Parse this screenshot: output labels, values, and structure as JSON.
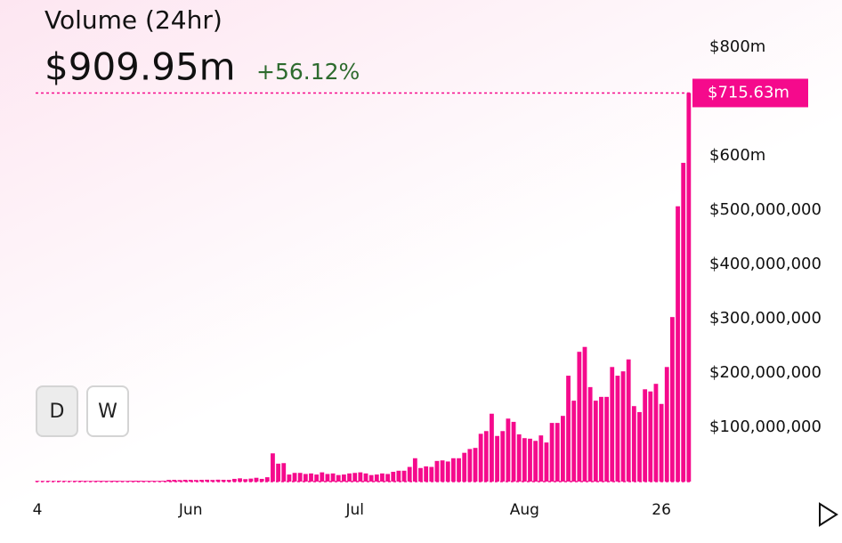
{
  "header": {
    "title": "Volume (24hr)",
    "value": "$909.95m",
    "change": "+56.12%"
  },
  "buttons": [
    "D",
    "W"
  ],
  "chart_data": {
    "type": "bar",
    "color": "#f50a8c",
    "last_value_label": "$715.63m",
    "categories": [
      "4",
      null,
      null,
      null,
      null,
      null,
      null,
      null,
      null,
      null,
      null,
      null,
      null,
      null,
      null,
      null,
      null,
      null,
      null,
      null,
      null,
      null,
      null,
      null,
      null,
      null,
      null,
      null,
      "Jun",
      null,
      null,
      null,
      null,
      null,
      null,
      null,
      null,
      null,
      null,
      null,
      null,
      null,
      null,
      null,
      null,
      null,
      null,
      null,
      null,
      null,
      null,
      null,
      null,
      null,
      null,
      null,
      null,
      null,
      "Jul",
      null,
      null,
      null,
      null,
      null,
      null,
      null,
      null,
      null,
      null,
      null,
      null,
      null,
      null,
      null,
      null,
      null,
      null,
      null,
      null,
      null,
      null,
      null,
      null,
      null,
      null,
      null,
      null,
      null,
      null,
      "Aug",
      null,
      null,
      null,
      null,
      null,
      null,
      null,
      null,
      null,
      null,
      null,
      null,
      null,
      null,
      null,
      null,
      null,
      null,
      null,
      null,
      null,
      null,
      null,
      null,
      "26",
      null,
      null,
      null,
      null,
      null
    ],
    "values": [
      1200000,
      1000000,
      1300000,
      1100000,
      1400000,
      1200000,
      1000000,
      1300000,
      1500000,
      1200000,
      1100000,
      1400000,
      1300000,
      1200000,
      1500000,
      1300000,
      1100000,
      1400000,
      1600000,
      1500000,
      1300000,
      1400000,
      1200000,
      1500000,
      3000000,
      3200000,
      2800000,
      3300000,
      3100000,
      2900000,
      3200000,
      3400000,
      3000000,
      3500000,
      3300000,
      3100000,
      5000000,
      6000000,
      4500000,
      5500000,
      7000000,
      5000000,
      8000000,
      52000000,
      33000000,
      34000000,
      13000000,
      16000000,
      16000000,
      14000000,
      15000000,
      13000000,
      17000000,
      14000000,
      15000000,
      12000000,
      13000000,
      15000000,
      16000000,
      17000000,
      15000000,
      12000000,
      13000000,
      15000000,
      14000000,
      18000000,
      20000000,
      20000000,
      27000000,
      43000000,
      25000000,
      28000000,
      27000000,
      38000000,
      39000000,
      37000000,
      43000000,
      43000000,
      53000000,
      60000000,
      62000000,
      88000000,
      93000000,
      125000000,
      84000000,
      93000000,
      116000000,
      110000000,
      87000000,
      80000000,
      79000000,
      75000000,
      85000000,
      72000000,
      108000000,
      108000000,
      121000000,
      195000000,
      149000000,
      239000000,
      248000000,
      174000000,
      149000000,
      156000000,
      156000000,
      211000000,
      195000000,
      203000000,
      225000000,
      139000000,
      128000000,
      170000000,
      166000000,
      180000000,
      143000000,
      211000000,
      303000000,
      507000000,
      587000000,
      715630000
    ],
    "ylim": [
      0,
      800000000
    ],
    "yticks": [
      {
        "value": 100000000,
        "label": "$100,000,000"
      },
      {
        "value": 200000000,
        "label": "$200,000,000"
      },
      {
        "value": 300000000,
        "label": "$300,000,000"
      },
      {
        "value": 400000000,
        "label": "$400,000,000"
      },
      {
        "value": 500000000,
        "label": "$500,000,000"
      },
      {
        "value": 600000000,
        "label": "$600m"
      },
      {
        "value": 800000000,
        "label": "$800m"
      }
    ]
  }
}
